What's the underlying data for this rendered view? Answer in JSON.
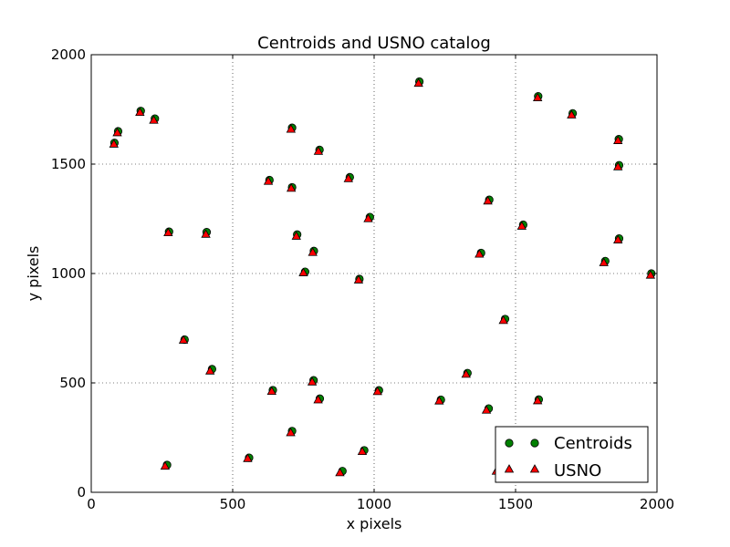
{
  "chart_data": {
    "type": "scatter",
    "title": "Centroids and USNO catalog",
    "xlabel": "x pixels",
    "ylabel": "y pixels",
    "xlim": [
      0,
      2000
    ],
    "ylim": [
      0,
      2000
    ],
    "xticks": [
      0,
      500,
      1000,
      1500,
      2000
    ],
    "yticks": [
      0,
      500,
      1000,
      1500,
      2000
    ],
    "xtick_labels": [
      "0",
      "500",
      "1000",
      "1500",
      "2000"
    ],
    "ytick_labels": [
      "0",
      "500",
      "1000",
      "1500",
      "2000"
    ],
    "grid": true,
    "legend_position": "lower-right",
    "series": [
      {
        "name": "Centroids",
        "marker": "circle",
        "color": "#008000",
        "points": [
          [
            82,
            1597
          ],
          [
            95,
            1650
          ],
          [
            175,
            1743
          ],
          [
            225,
            1708
          ],
          [
            275,
            1191
          ],
          [
            408,
            1189
          ],
          [
            427,
            563
          ],
          [
            330,
            698
          ],
          [
            268,
            125
          ],
          [
            558,
            158
          ],
          [
            630,
            1427
          ],
          [
            710,
            1666
          ],
          [
            807,
            1565
          ],
          [
            710,
            1394
          ],
          [
            728,
            1178
          ],
          [
            787,
            1103
          ],
          [
            756,
            1008
          ],
          [
            914,
            1440
          ],
          [
            985,
            1258
          ],
          [
            948,
            975
          ],
          [
            1160,
            1877
          ],
          [
            642,
            467
          ],
          [
            786,
            512
          ],
          [
            808,
            428
          ],
          [
            710,
            280
          ],
          [
            965,
            192
          ],
          [
            888,
            97
          ],
          [
            1017,
            466
          ],
          [
            1236,
            423
          ],
          [
            1330,
            545
          ],
          [
            1407,
            1337
          ],
          [
            1378,
            1094
          ],
          [
            1527,
            1223
          ],
          [
            1463,
            792
          ],
          [
            1405,
            383
          ],
          [
            1582,
            424
          ],
          [
            1580,
            1810
          ],
          [
            1702,
            1732
          ],
          [
            1865,
            1614
          ],
          [
            1866,
            1495
          ],
          [
            1866,
            1160
          ],
          [
            1817,
            1057
          ],
          [
            1980,
            1000
          ]
        ]
      },
      {
        "name": "USNO",
        "marker": "triangle",
        "color": "#ff0000",
        "points": [
          [
            80,
            1592
          ],
          [
            92,
            1644
          ],
          [
            172,
            1737
          ],
          [
            221,
            1701
          ],
          [
            272,
            1187
          ],
          [
            405,
            1180
          ],
          [
            420,
            555
          ],
          [
            326,
            696
          ],
          [
            261,
            120
          ],
          [
            553,
            155
          ],
          [
            626,
            1422
          ],
          [
            706,
            1660
          ],
          [
            803,
            1559
          ],
          [
            707,
            1390
          ],
          [
            725,
            1171
          ],
          [
            783,
            1097
          ],
          [
            750,
            1004
          ],
          [
            909,
            1434
          ],
          [
            979,
            1251
          ],
          [
            945,
            971
          ],
          [
            1157,
            1870
          ],
          [
            638,
            462
          ],
          [
            781,
            505
          ],
          [
            802,
            423
          ],
          [
            705,
            273
          ],
          [
            958,
            187
          ],
          [
            879,
            90
          ],
          [
            1012,
            461
          ],
          [
            1230,
            418
          ],
          [
            1325,
            540
          ],
          [
            1402,
            1332
          ],
          [
            1372,
            1089
          ],
          [
            1522,
            1217
          ],
          [
            1457,
            786
          ],
          [
            1397,
            376
          ],
          [
            1578,
            419
          ],
          [
            1578,
            1804
          ],
          [
            1698,
            1725
          ],
          [
            1862,
            1608
          ],
          [
            1862,
            1488
          ],
          [
            1862,
            1154
          ],
          [
            1812,
            1050
          ],
          [
            1977,
            993
          ],
          [
            1432,
            97
          ]
        ]
      }
    ]
  }
}
